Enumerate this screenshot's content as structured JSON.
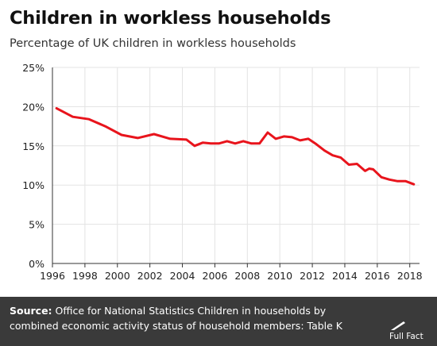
{
  "header": {
    "title": "Children in workless households",
    "subtitle": "Percentage of UK children in workless households"
  },
  "footer": {
    "source_label": "Source:",
    "source_text": "Office for National Statistics Children in households by combined economic activity status of household members: Table K",
    "logo_text": "Full Fact"
  },
  "colors": {
    "line": "#e8141c",
    "grid": "#e3e3e3",
    "axis": "#333333",
    "footer_bg": "#3a3a3a"
  },
  "chart_data": {
    "type": "line",
    "title": "Children in workless households",
    "subtitle": "Percentage of UK children in workless households",
    "xlabel": "",
    "ylabel": "",
    "xlim": [
      1996,
      2018.6
    ],
    "ylim": [
      0,
      25
    ],
    "x_ticks": [
      1996,
      1998,
      2000,
      2002,
      2004,
      2006,
      2008,
      2010,
      2012,
      2014,
      2016,
      2018
    ],
    "y_ticks": [
      0,
      5,
      10,
      15,
      20,
      25
    ],
    "y_tick_labels": [
      "0%",
      "5%",
      "10%",
      "15%",
      "20%",
      "25%"
    ],
    "grid": true,
    "legend": "none",
    "series": [
      {
        "x": [
          1996.25,
          1997.25,
          1998.25,
          1999.25,
          2000.25,
          2001.25,
          2002.25,
          2003.25,
          2004.25,
          2004.75,
          2005.25,
          2005.75,
          2006.25,
          2006.75,
          2007.25,
          2007.75,
          2008.25,
          2008.75,
          2009.25,
          2009.75,
          2010.25,
          2010.75,
          2011.25,
          2011.75,
          2012.25,
          2012.75,
          2013.25,
          2013.75,
          2014.25,
          2014.75,
          2015.25,
          2015.5,
          2015.75,
          2016.25,
          2016.75,
          2017.25,
          2017.75,
          2018.25
        ],
        "values": [
          19.8,
          18.7,
          18.4,
          17.5,
          16.4,
          16.0,
          16.5,
          15.9,
          15.8,
          15.0,
          15.4,
          15.3,
          15.3,
          15.6,
          15.3,
          15.6,
          15.3,
          15.3,
          16.7,
          15.9,
          16.2,
          16.1,
          15.7,
          15.9,
          15.2,
          14.4,
          13.8,
          13.5,
          12.6,
          12.7,
          11.8,
          12.1,
          12.0,
          11.0,
          10.7,
          10.5,
          10.5,
          10.1
        ]
      }
    ]
  }
}
